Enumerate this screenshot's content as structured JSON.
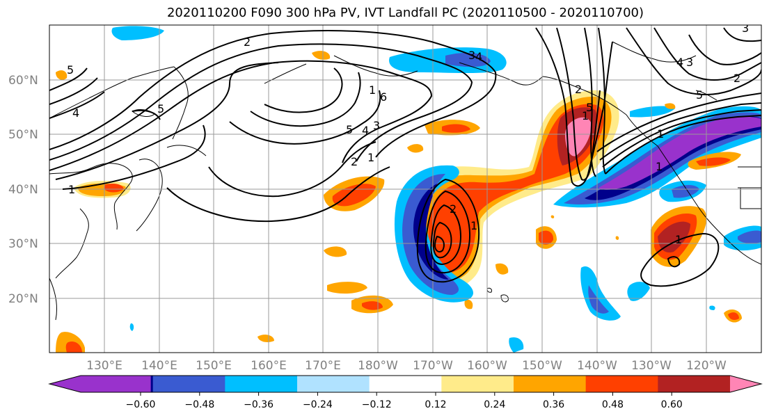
{
  "title": "2020110200 F090 300 hPa PV, IVT Landfall PC (2020110500 - 2020110700)",
  "map": {
    "lat_labels": [
      "20°N",
      "30°N",
      "40°N",
      "50°N",
      "60°N"
    ],
    "lon_labels": [
      "130°E",
      "140°E",
      "150°E",
      "160°E",
      "170°E",
      "180°W",
      "170°W",
      "160°W",
      "150°W",
      "140°W",
      "130°W",
      "120°W"
    ],
    "grid": true,
    "pv_contour_labels": [
      "2",
      "5",
      "4",
      "5",
      "1",
      "6",
      "4",
      "3",
      "5",
      "4",
      "3",
      "2",
      "1",
      "2",
      "1",
      "1",
      "5",
      "1",
      "4",
      "3",
      "2",
      "5",
      "3",
      "1",
      "2",
      "1",
      "1"
    ]
  },
  "colorbar": {
    "ticks": [
      "−0.60",
      "−0.48",
      "−0.36",
      "−0.24",
      "−0.12",
      "0.12",
      "0.24",
      "0.36",
      "0.48",
      "0.60"
    ],
    "colors": [
      "#9932cc",
      "#00008b",
      "#3a5bd1",
      "#00bfff",
      "#b0e2ff",
      "#ffffff",
      "#ffeb8a",
      "#ffa500",
      "#ff4000",
      "#b22222",
      "#ff85b5"
    ]
  }
}
